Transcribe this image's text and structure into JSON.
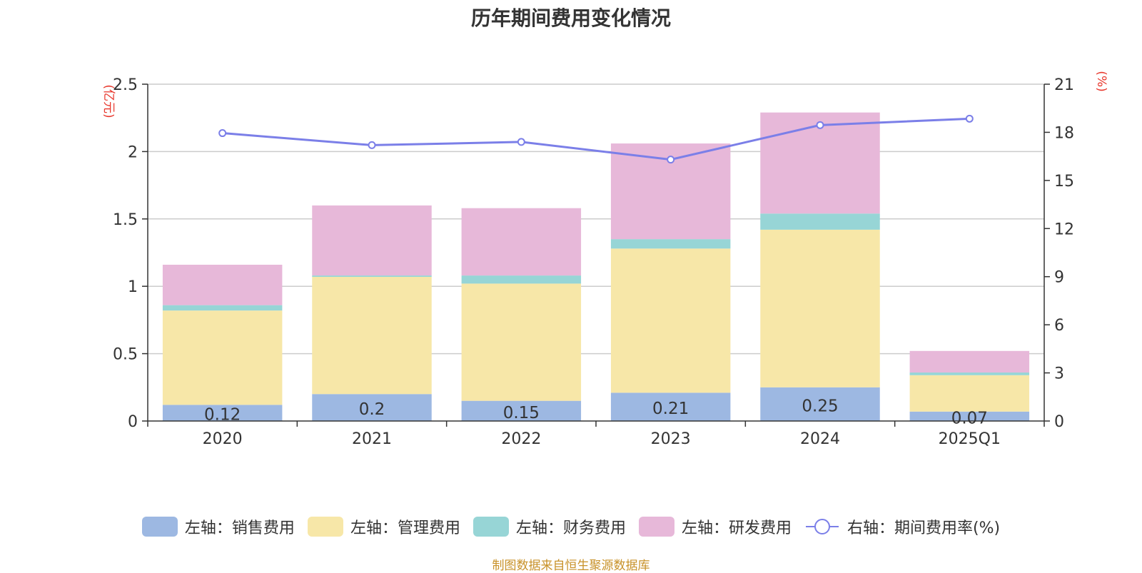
{
  "chart_data": {
    "type": "bar",
    "title": "历年期间费用变化情况",
    "categories": [
      "2020",
      "2021",
      "2022",
      "2023",
      "2024",
      "2025Q1"
    ],
    "left_axis": {
      "unit_label": "(亿元)",
      "ylim": [
        0,
        2.5
      ],
      "ticks": [
        "0",
        "0.5",
        "1",
        "1.5",
        "2",
        "2.5"
      ]
    },
    "right_axis": {
      "unit_label": "(%)",
      "ylim": [
        0,
        21
      ],
      "ticks": [
        "0",
        "3",
        "6",
        "9",
        "12",
        "15",
        "18",
        "21"
      ]
    },
    "grid": true,
    "legend_position": "bottom",
    "series": [
      {
        "name": "左轴：销售费用",
        "axis": "left",
        "type": "bar",
        "stack": "total",
        "color": "#9db8e2",
        "values": [
          0.12,
          0.2,
          0.15,
          0.21,
          0.25,
          0.07
        ],
        "labels": [
          "0.12",
          "0.2",
          "0.15",
          "0.21",
          "0.25",
          "0.07"
        ]
      },
      {
        "name": "左轴：管理费用",
        "axis": "left",
        "type": "bar",
        "stack": "total",
        "color": "#f7e7a8",
        "values": [
          0.7,
          0.87,
          0.87,
          1.07,
          1.17,
          0.27
        ]
      },
      {
        "name": "左轴：财务费用",
        "axis": "left",
        "type": "bar",
        "stack": "total",
        "color": "#97d5d6",
        "values": [
          0.04,
          0.01,
          0.06,
          0.07,
          0.12,
          0.02
        ]
      },
      {
        "name": "左轴：研发费用",
        "axis": "left",
        "type": "bar",
        "stack": "total",
        "color": "#e7b8d9",
        "values": [
          0.3,
          0.52,
          0.5,
          0.71,
          0.75,
          0.16
        ]
      },
      {
        "name": "右轴：期间费用率(%)",
        "axis": "right",
        "type": "line",
        "color": "#7b7fe8",
        "values": [
          17.95,
          17.2,
          17.4,
          16.3,
          18.45,
          18.85
        ]
      }
    ]
  },
  "source_note": "制图数据来自恒生聚源数据库"
}
